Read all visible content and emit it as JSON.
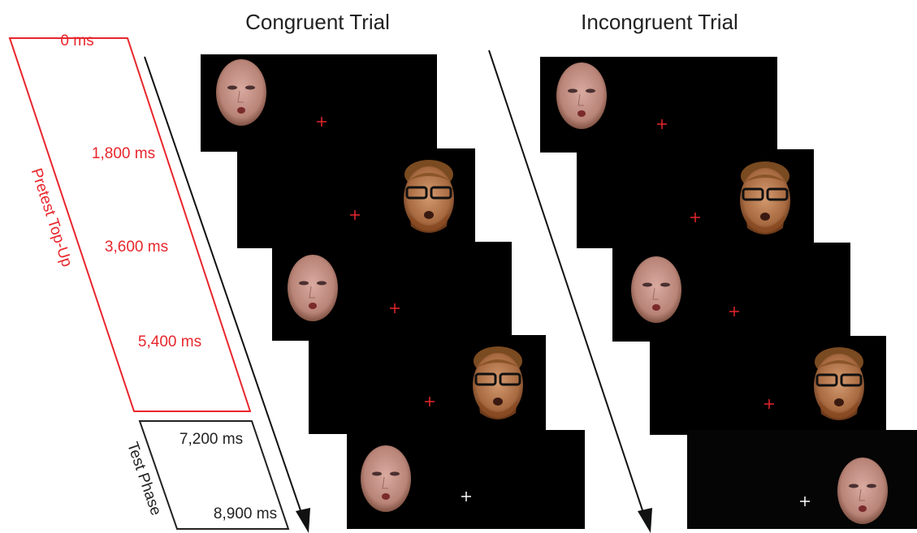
{
  "titles": {
    "congruent": "Congruent Trial",
    "incongruent": "Incongruent Trial"
  },
  "pretest": {
    "label": "Pretest Top-Up",
    "times": [
      "0 ms",
      "1,800 ms",
      "3,600 ms",
      "5,400 ms"
    ]
  },
  "test": {
    "label": "Test Phase",
    "times": [
      "7,200 ms",
      "8,900 ms"
    ]
  }
}
